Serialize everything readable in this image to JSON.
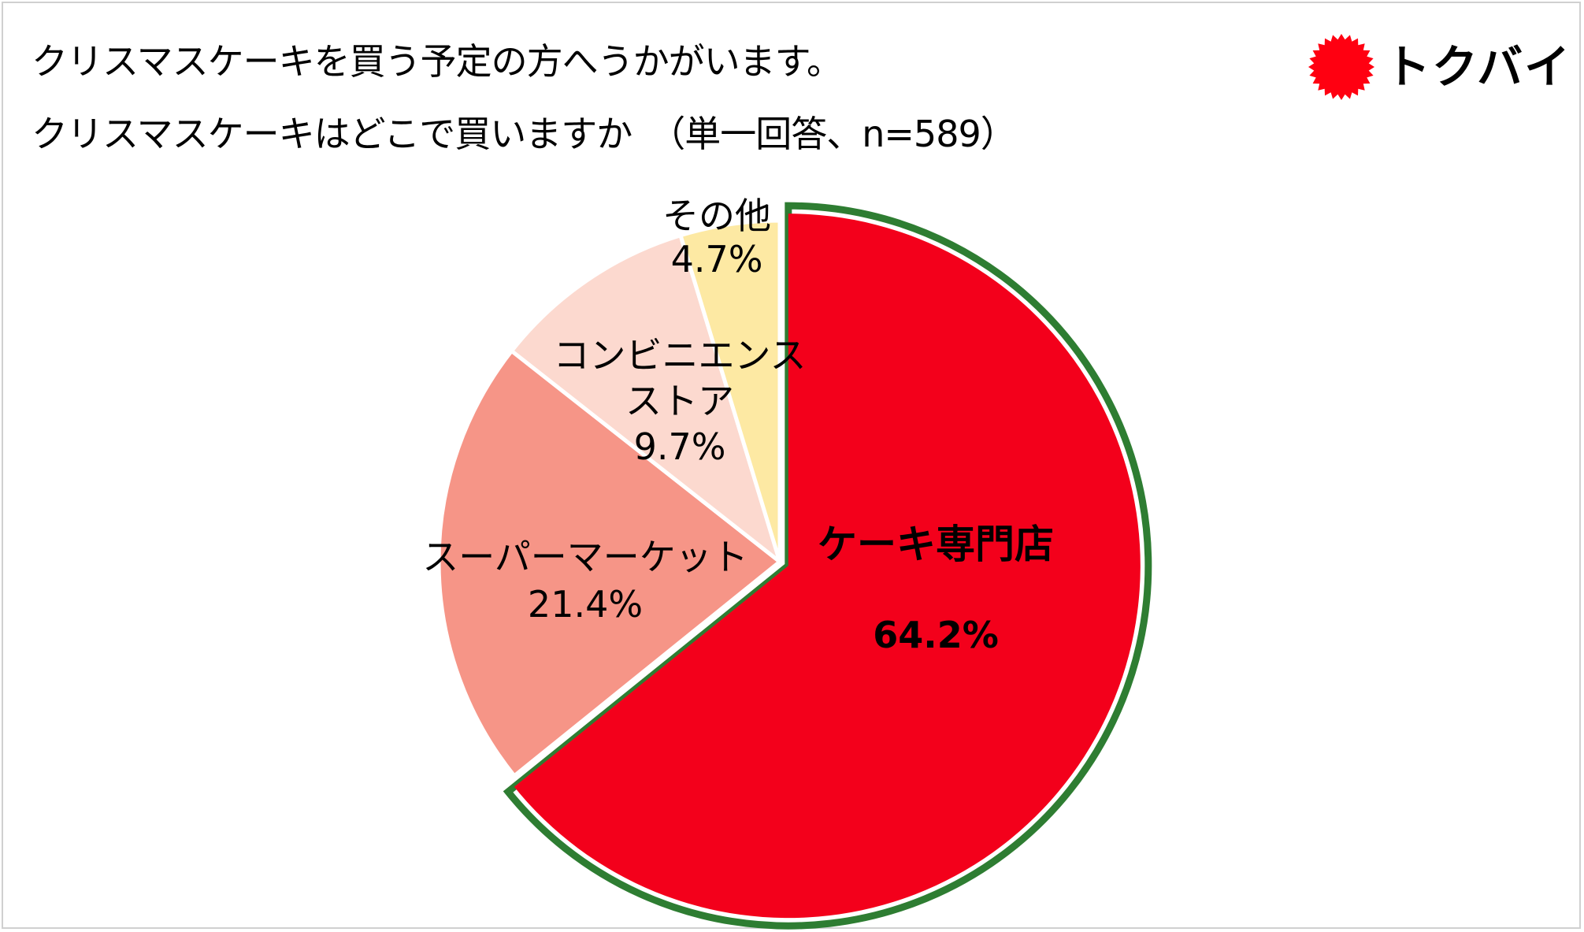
{
  "title": {
    "line1": "クリスマスケーキを買う予定の方へうかがいます。",
    "line2": "クリスマスケーキはどこで買いますか　（単一回答、n=589）"
  },
  "logo": {
    "text": "トクバイ",
    "icon": "red-sun-badge-icon",
    "color": "#ff0011"
  },
  "chart_data": {
    "type": "pie",
    "start_angle": "12 o'clock",
    "direction": "clockwise",
    "slices": [
      {
        "label": "ケーキ専門店",
        "value": 64.2,
        "value_label": "64.2%",
        "color": "#f3001b",
        "highlight": true,
        "outline_color": "#2e7d32"
      },
      {
        "label": "スーパーマーケット",
        "value": 21.4,
        "value_label": "21.4%",
        "color": "#f69587"
      },
      {
        "label": "コンビニエンスストア",
        "label_lines": [
          "コンビニエンス",
          "ストア"
        ],
        "value": 9.7,
        "value_label": "9.7%",
        "color": "#fcd9cf"
      },
      {
        "label": "その他",
        "value": 4.7,
        "value_label": "4.7%",
        "color": "#fde9a3"
      }
    ]
  }
}
